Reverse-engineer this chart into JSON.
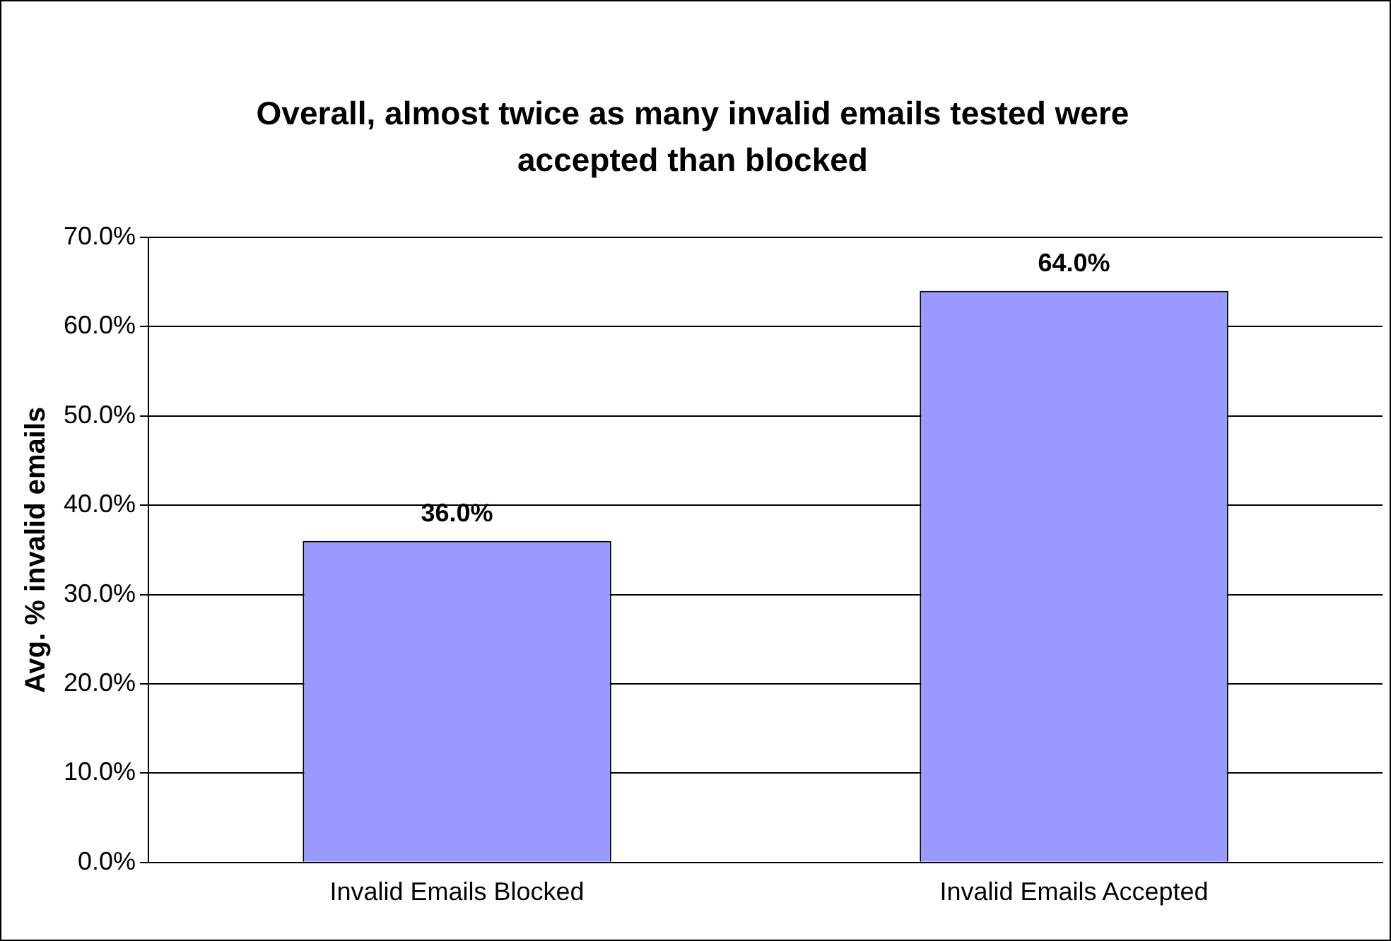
{
  "chart_data": {
    "type": "bar",
    "title": "Overall, almost twice as many invalid emails tested were accepted than blocked",
    "ylabel": "Avg. % invalid emails",
    "categories": [
      "Invalid Emails Blocked",
      "Invalid Emails Accepted"
    ],
    "values": [
      36,
      64
    ],
    "value_labels": [
      "36.0%",
      "64.0%"
    ],
    "color": "#9999ff",
    "ylim": [
      0,
      70
    ],
    "yticks": [
      {
        "value": 0,
        "label": "0.0%"
      },
      {
        "value": 10,
        "label": "10.0%"
      },
      {
        "value": 20,
        "label": "20.0%"
      },
      {
        "value": 30,
        "label": "30.0%"
      },
      {
        "value": 40,
        "label": "40.0%"
      },
      {
        "value": 50,
        "label": "50.0%"
      },
      {
        "value": 60,
        "label": "60.0%"
      },
      {
        "value": 70,
        "label": "70.0%"
      }
    ],
    "grid": "y",
    "legend": false
  }
}
